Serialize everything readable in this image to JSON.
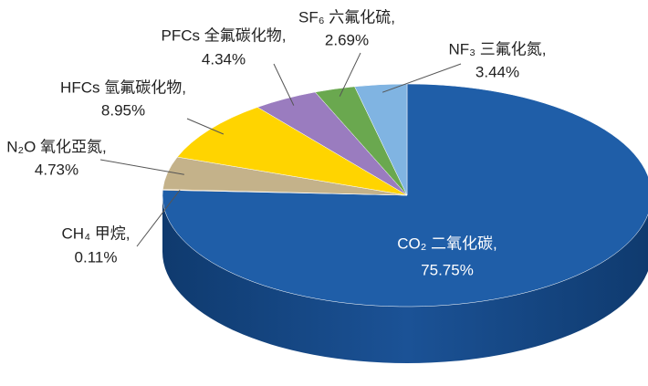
{
  "chart_data": {
    "type": "pie3d",
    "categories": [
      "CO₂ 二氧化碳,",
      "CH₄ 甲烷,",
      "N₂O 氧化亞氮,",
      "HFCs 氫氟碳化物,",
      "PFCs 全氟碳化物,",
      "SF₆ 六氟化硫,",
      "NF₃ 三氟化氮,"
    ],
    "values": [
      75.75,
      0.11,
      4.73,
      8.95,
      4.34,
      2.69,
      3.44
    ],
    "value_labels": [
      "75.75%",
      "0.11%",
      "4.73%",
      "8.95%",
      "4.34%",
      "2.69%",
      "3.44%"
    ],
    "colors": [
      "#1f5ea8",
      "#f0a030",
      "#c4b28a",
      "#ffd400",
      "#9a7cbf",
      "#6aa84f",
      "#80b4e2"
    ]
  }
}
